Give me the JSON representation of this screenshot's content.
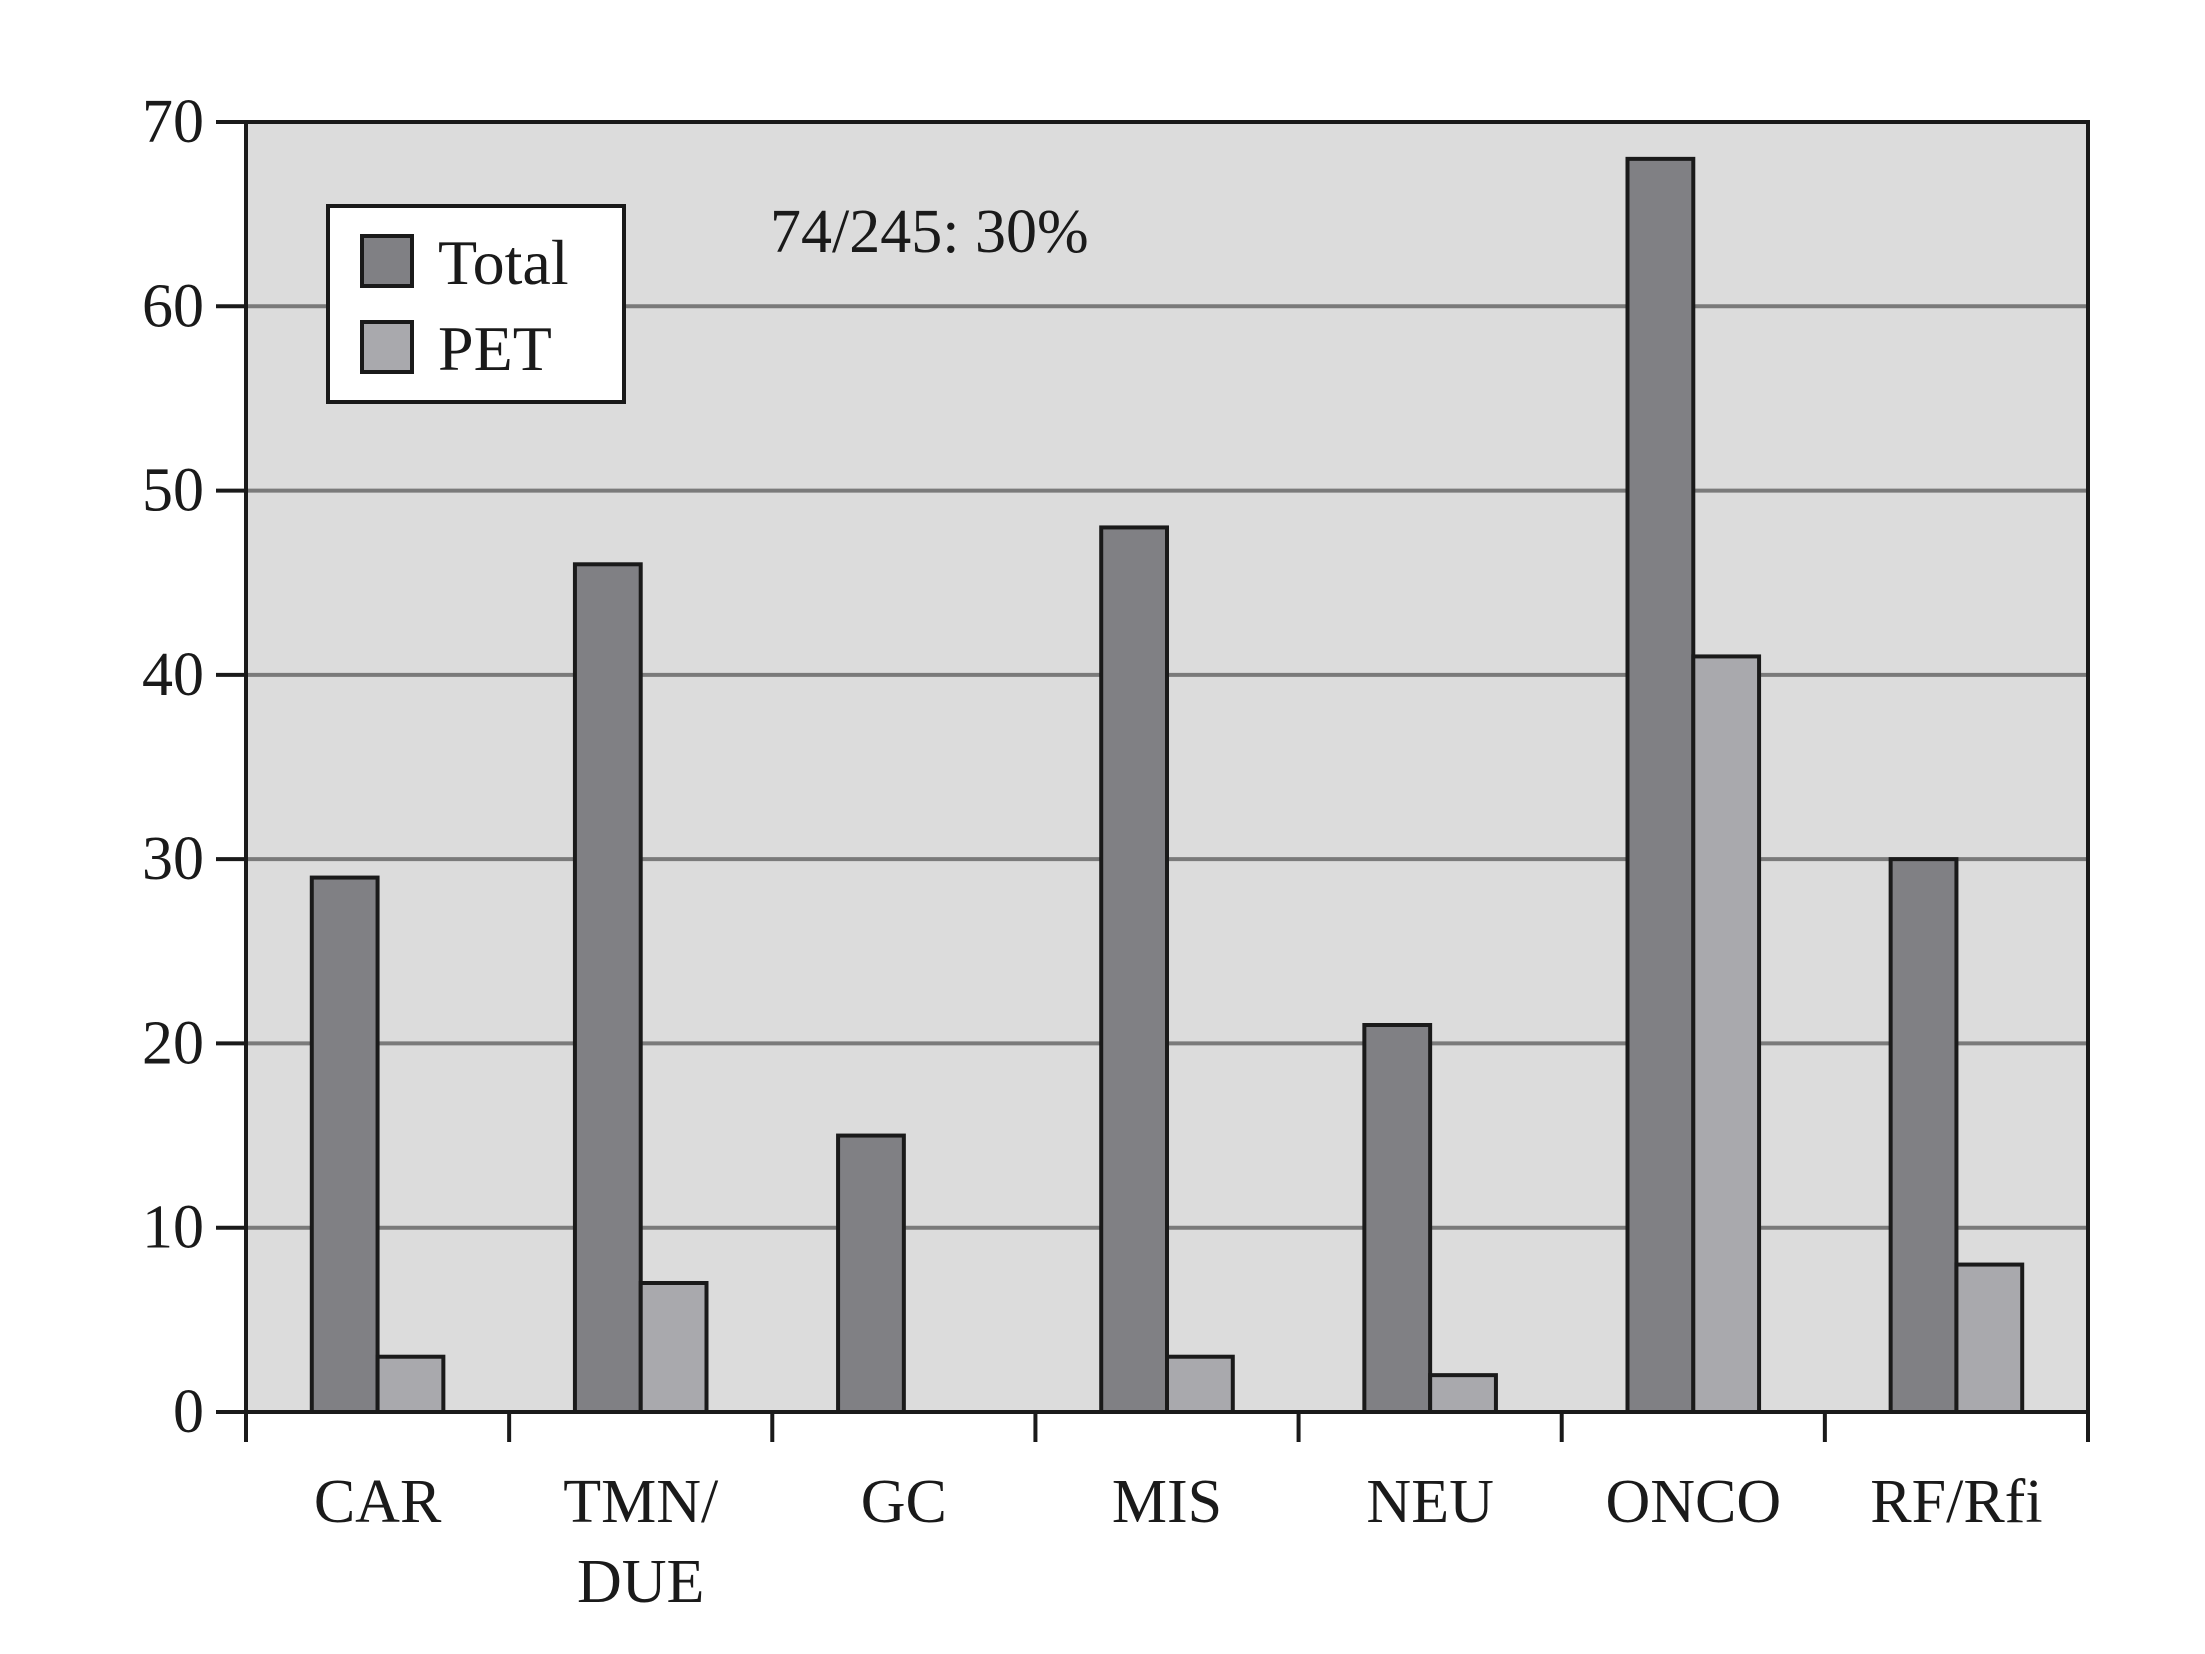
{
  "chart_data": {
    "type": "bar",
    "title": "",
    "xlabel": "",
    "ylabel": "",
    "ylim": [
      0,
      70
    ],
    "yticks": [
      0,
      10,
      20,
      30,
      40,
      50,
      60,
      70
    ],
    "grid": true,
    "legend_position": "top-left",
    "annotation": "74/245: 30%",
    "categories": [
      [
        "CAR"
      ],
      [
        "TMN/",
        "DUE"
      ],
      [
        "GC"
      ],
      [
        "MIS"
      ],
      [
        "NEU"
      ],
      [
        "ONCO"
      ],
      [
        "RF/Rfi"
      ]
    ],
    "series": [
      {
        "name": "Total",
        "color": "#808084",
        "values": [
          29,
          46,
          15,
          48,
          21,
          68,
          30
        ]
      },
      {
        "name": "PET",
        "color": "#a9a9ad",
        "values": [
          3,
          7,
          0,
          3,
          2,
          41,
          8
        ]
      }
    ],
    "plot_background": "#dcdcdc",
    "gridline_color": "#7a7a7a"
  }
}
